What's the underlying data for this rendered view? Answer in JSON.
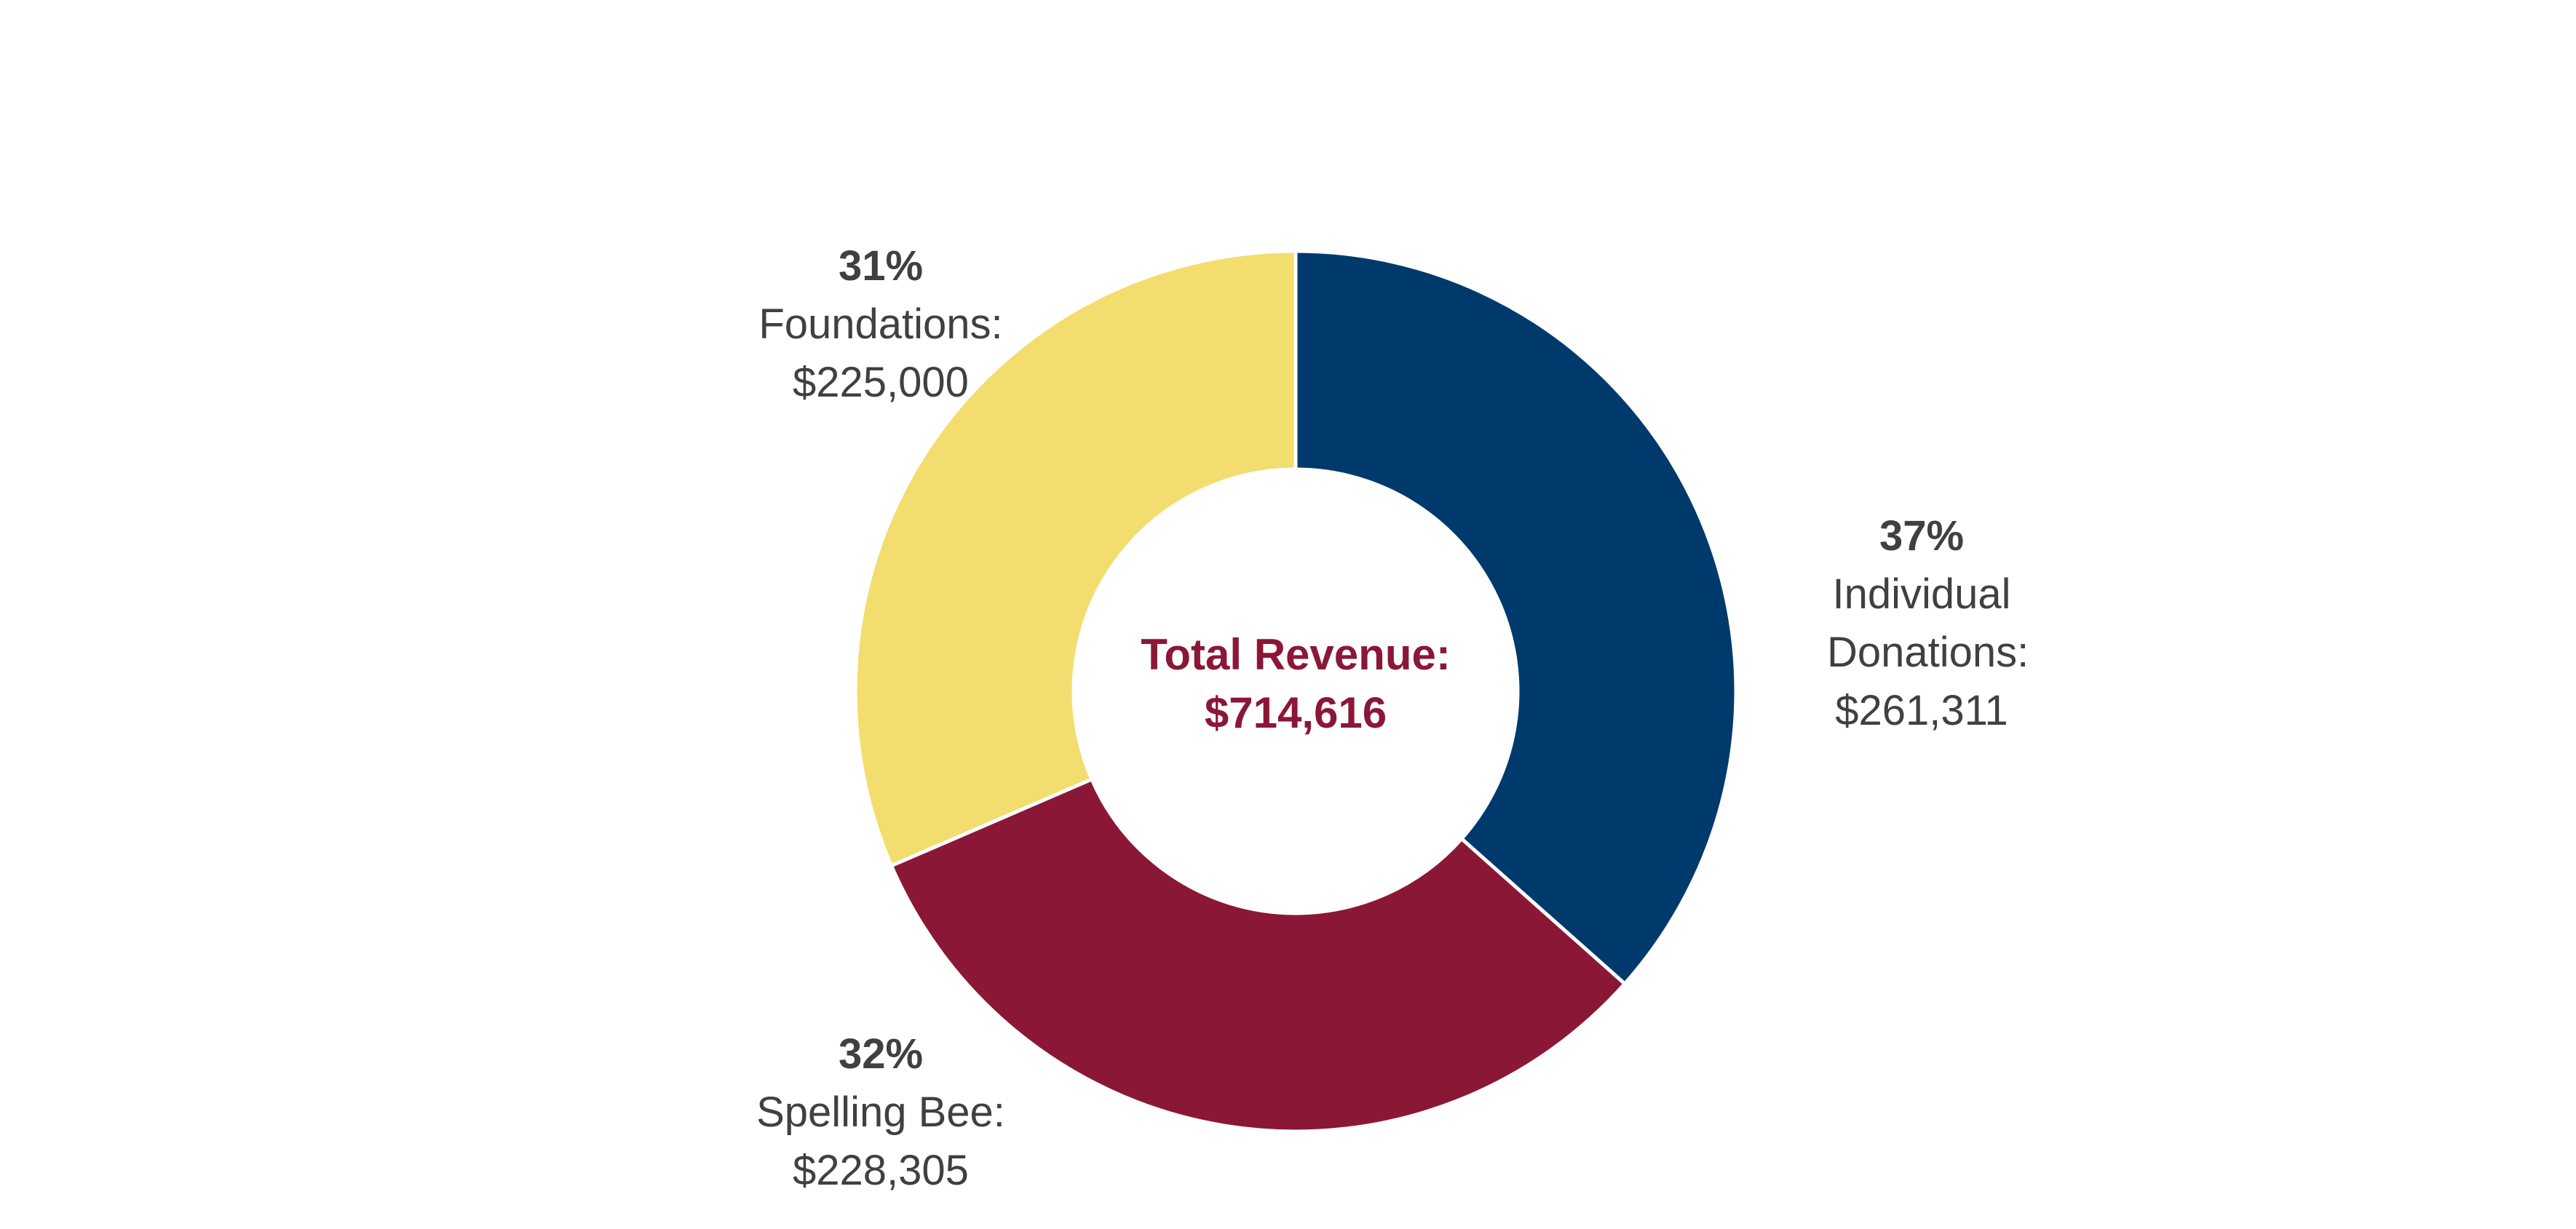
{
  "chart_data": {
    "type": "pie",
    "style": "donut",
    "center": {
      "label": "Total Revenue:",
      "value": "$714,616",
      "color": "#8B1736"
    },
    "slices": [
      {
        "name": "Individual Donations:",
        "value": 261311,
        "amount": "$261,311",
        "percent": "37%",
        "color": "#003A6C"
      },
      {
        "name": "Spelling Bee:",
        "value": 228305,
        "amount": "$228,305",
        "percent": "32%",
        "color": "#8B1736"
      },
      {
        "name": "Foundations:",
        "value": 225000,
        "amount": "$225,000",
        "percent": "31%",
        "color": "#F3DD6E"
      }
    ],
    "label_text_color": "#404040"
  }
}
